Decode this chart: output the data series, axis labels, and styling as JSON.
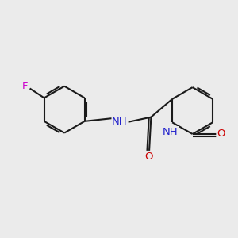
{
  "background_color": "#ebebeb",
  "bond_color": "#1a1a1a",
  "bond_width": 1.5,
  "dbo": 0.055,
  "atom_colors": {
    "F": "#cc00cc",
    "N": "#2222cc",
    "O": "#cc0000"
  },
  "font_size": 9.5
}
